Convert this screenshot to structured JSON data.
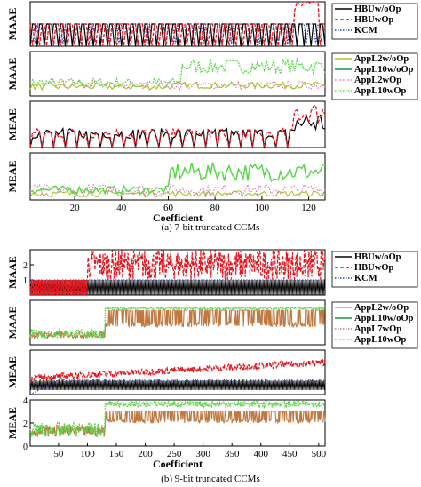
{
  "captions": {
    "a": "(a) 7-bit truncated CCMs",
    "b": "(b) 9-bit truncated CCMs"
  },
  "colors": {
    "HBUw/oOp": "#000000",
    "HBUwOp": "#e8141e",
    "KCM": "#1f3fbf",
    "AppL2w/oOp": "#a8c432",
    "AppL10w/oOp": "#1f8f4e",
    "AppL2wOp": "#e26fb0",
    "AppL7w/oOp": "#a8c432",
    "AppL7wOp": "#e26fb0",
    "AppL10wOp": "#5bd64c",
    "AppL-brown": "#c07840"
  },
  "chart_data": [
    {
      "id": "a1",
      "type": "line",
      "ylabel": "MAAE",
      "xlim": [
        1,
        127
      ],
      "ylim": [
        0,
        2
      ],
      "yticks": [],
      "xticks": [],
      "legend": {
        "placement": "right",
        "entries": [
          "HBUw/oOp",
          "HBUwOp",
          "KCM"
        ]
      },
      "series": [
        {
          "name": "HBUw/oOp",
          "style": "solid",
          "values_desc": "alternates between 0 and 1 across all coefficients"
        },
        {
          "name": "HBUwOp",
          "style": "dashed",
          "values_desc": "0-1 alternation, rising to about 2.6 near coefficients 116-121"
        },
        {
          "name": "KCM",
          "style": "dotted",
          "values_desc": "near 1, dipping to 0"
        }
      ]
    },
    {
      "id": "a2",
      "type": "line",
      "ylabel": "MAAE",
      "xlim": [
        1,
        127
      ],
      "ylim": [
        0,
        6
      ],
      "yticks": [],
      "xticks": [],
      "legend": {
        "placement": "right",
        "entries": [
          "AppL2w/oOp",
          "AppL10w/oOp",
          "AppL2wOp",
          "AppL10wOp"
        ]
      },
      "series": [
        {
          "name": "AppL2w/oOp",
          "style": "solid",
          "values_desc": "about 1-2, low"
        },
        {
          "name": "AppL10w/oOp",
          "style": "solid",
          "values_desc": "about 1-2 rising to 4-5 after coefficient 65"
        },
        {
          "name": "AppL2wOp",
          "style": "dotted",
          "values_desc": "about 1-2"
        },
        {
          "name": "AppL10wOp",
          "style": "dotted",
          "values_desc": "about 1-2 rising to 4-5 after coefficient 65"
        }
      ]
    },
    {
      "id": "a3",
      "type": "line",
      "ylabel": "MEAE",
      "xlim": [
        1,
        127
      ],
      "ylim": [
        0,
        0.6
      ],
      "yticks": [],
      "xticks": [],
      "legend": {
        "placement": "none",
        "entries": []
      },
      "series": [
        {
          "name": "HBUw/oOp",
          "style": "solid",
          "values_desc": "about 0.1-0.25 with dips to 0, rising to 0.5 near end"
        },
        {
          "name": "HBUwOp",
          "style": "dashed",
          "values_desc": "similar, rising to about 0.8 near end"
        }
      ]
    },
    {
      "id": "a4",
      "type": "line",
      "ylabel": "MEAE",
      "xlim": [
        1,
        127
      ],
      "ylim": [
        0,
        3
      ],
      "yticks": [],
      "xticks": [
        20,
        40,
        60,
        80,
        100,
        120
      ],
      "xlabel": "Coefficient",
      "legend": {
        "placement": "none",
        "entries": []
      },
      "series": [
        {
          "name": "AppL10wOp",
          "style": "solid",
          "values_desc": "about 0.5 rising to 2-2.6 after coefficient 60"
        },
        {
          "name": "AppL2wOp",
          "style": "dotted",
          "values_desc": "about 0.3-1"
        },
        {
          "name": "AppL2w/oOp",
          "style": "solid",
          "values_desc": "about 0.2-0.7"
        }
      ]
    },
    {
      "id": "b1",
      "type": "line",
      "ylabel": "MAAE",
      "xlim": [
        1,
        511
      ],
      "ylim": [
        0,
        3
      ],
      "yticks": [
        1,
        2
      ],
      "xticks": [],
      "legend": {
        "placement": "right",
        "entries": [
          "HBUw/oOp",
          "HBUwOp",
          "KCM"
        ]
      },
      "series": [
        {
          "name": "HBUw/oOp",
          "style": "solid",
          "values_desc": "dense alternation 0-1"
        },
        {
          "name": "HBUwOp",
          "style": "dashed",
          "values_desc": "1 to 3 after coefficient 100"
        },
        {
          "name": "KCM",
          "style": "dotted",
          "values_desc": "about 1"
        }
      ]
    },
    {
      "id": "b2",
      "type": "line",
      "ylabel": "MAAE",
      "xlim": [
        1,
        511
      ],
      "ylim": [
        0,
        10
      ],
      "yticks": [],
      "xticks": [],
      "legend": {
        "placement": "right",
        "entries": [
          "AppL2w/oOp",
          "AppL10w/oOp",
          "AppL7wOp",
          "AppL10wOp"
        ]
      },
      "series": [
        {
          "name": "AppL10wOp",
          "style": "dotted",
          "values_desc": "about 2 rising to 8 after coefficient 130"
        },
        {
          "name": "AppL-brown",
          "style": "solid",
          "values_desc": "oscillates between about 4 and 8"
        }
      ]
    },
    {
      "id": "b3",
      "type": "line",
      "ylabel": "MEAE",
      "xlim": [
        1,
        511
      ],
      "ylim": [
        0,
        1
      ],
      "yticks": [],
      "xticks": [],
      "legend": {
        "placement": "none",
        "entries": []
      },
      "series": [
        {
          "name": "HBUw/oOp",
          "style": "solid",
          "values_desc": "dense, about 0.1-0.35"
        },
        {
          "name": "HBUwOp",
          "style": "dashed",
          "values_desc": "about 0.3-0.8, rising"
        },
        {
          "name": "KCM",
          "style": "dotted",
          "values_desc": "rising to about 0.4 near coefficient 60"
        }
      ]
    },
    {
      "id": "b4",
      "type": "line",
      "ylabel": "MEAE",
      "xlim": [
        1,
        511
      ],
      "ylim": [
        0,
        4
      ],
      "yticks": [
        0,
        2,
        4
      ],
      "xticks": [
        50,
        100,
        150,
        200,
        250,
        300,
        350,
        400,
        450,
        500
      ],
      "xlabel": "Coefficient",
      "legend": {
        "placement": "none",
        "entries": []
      },
      "series": [
        {
          "name": "AppL10wOp",
          "style": "dotted",
          "values_desc": "about 1 rising to 3.5-4 after coefficient 130"
        },
        {
          "name": "AppL-brown",
          "style": "solid",
          "values_desc": "oscillates between about 2 and 3"
        }
      ]
    }
  ]
}
